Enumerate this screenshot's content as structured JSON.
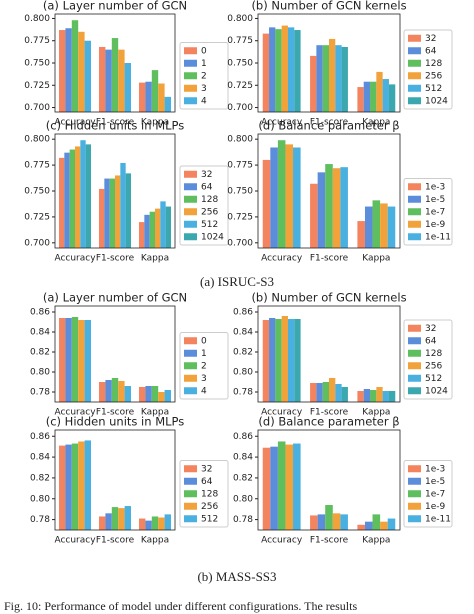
{
  "captions": [
    "(a) ISRUC-S3",
    "(b) MASS-SS3"
  ],
  "footer": "Fig. 10: Performance of model under different configurations. The results",
  "chart_data": [
    {
      "type": "bar",
      "title": "(a) Layer number of GCN",
      "categories": [
        "Accuracy",
        "F1-score",
        "Kappa"
      ],
      "ylim": [
        0.695,
        0.805
      ],
      "yticks": [
        {
          "value": 0.7,
          "label": "0.700"
        },
        0.725,
        {
          "value": 0.75,
          "label": "0.750"
        },
        0.775,
        {
          "value": 0.8,
          "label": "0.800"
        }
      ],
      "series": [
        {
          "name": "0",
          "color": "#f4845f",
          "values": [
            0.787,
            0.768,
            0.728
          ]
        },
        {
          "name": "1",
          "color": "#5b8ddb",
          "values": [
            0.789,
            0.765,
            0.729
          ]
        },
        {
          "name": "2",
          "color": "#5fbf5f",
          "values": [
            0.798,
            0.778,
            0.742
          ]
        },
        {
          "name": "3",
          "color": "#f2a23a",
          "values": [
            0.785,
            0.765,
            0.727
          ]
        },
        {
          "name": "4",
          "color": "#4ab0e0",
          "values": [
            0.775,
            0.75,
            0.712
          ]
        }
      ]
    },
    {
      "type": "bar",
      "title": "(b) Number of GCN kernels",
      "categories": [
        "Accuracy",
        "F1-score",
        "Kappa"
      ],
      "ylim": [
        0.695,
        0.805
      ],
      "yticks": [
        {
          "value": 0.7,
          "label": "0.700"
        },
        0.725,
        {
          "value": 0.75,
          "label": "0.750"
        },
        0.775,
        {
          "value": 0.8,
          "label": "0.800"
        }
      ],
      "series": [
        {
          "name": "32",
          "color": "#f4845f",
          "values": [
            0.783,
            0.758,
            0.723
          ]
        },
        {
          "name": "64",
          "color": "#5b8ddb",
          "values": [
            0.79,
            0.77,
            0.729
          ]
        },
        {
          "name": "128",
          "color": "#5fbf5f",
          "values": [
            0.788,
            0.77,
            0.729
          ]
        },
        {
          "name": "256",
          "color": "#f2a23a",
          "values": [
            0.792,
            0.777,
            0.74
          ]
        },
        {
          "name": "512",
          "color": "#4ab0e0",
          "values": [
            0.79,
            0.77,
            0.732
          ]
        },
        {
          "name": "1024",
          "color": "#3ba8b0",
          "values": [
            0.787,
            0.768,
            0.726
          ]
        }
      ]
    },
    {
      "type": "bar",
      "title": "(c) Hidden units in MLPs",
      "categories": [
        "Accuracy",
        "F1-score",
        "Kappa"
      ],
      "ylim": [
        0.695,
        0.805
      ],
      "yticks": [
        {
          "value": 0.7,
          "label": "0.700"
        },
        0.725,
        {
          "value": 0.75,
          "label": "0.750"
        },
        0.775,
        {
          "value": 0.8,
          "label": "0.800"
        }
      ],
      "series": [
        {
          "name": "32",
          "color": "#f4845f",
          "values": [
            0.782,
            0.752,
            0.72
          ]
        },
        {
          "name": "64",
          "color": "#5b8ddb",
          "values": [
            0.787,
            0.762,
            0.727
          ]
        },
        {
          "name": "128",
          "color": "#5fbf5f",
          "values": [
            0.79,
            0.762,
            0.73
          ]
        },
        {
          "name": "256",
          "color": "#f2a23a",
          "values": [
            0.793,
            0.765,
            0.733
          ]
        },
        {
          "name": "512",
          "color": "#4ab0e0",
          "values": [
            0.799,
            0.777,
            0.74
          ]
        },
        {
          "name": "1024",
          "color": "#3ba8b0",
          "values": [
            0.795,
            0.767,
            0.735
          ]
        }
      ]
    },
    {
      "type": "bar",
      "title": "(d) Balance parameter β",
      "categories": [
        "Accuracy",
        "F1-score",
        "Kappa"
      ],
      "ylim": [
        0.695,
        0.805
      ],
      "yticks": [
        {
          "value": 0.7,
          "label": "0.700"
        },
        0.725,
        {
          "value": 0.75,
          "label": "0.750"
        },
        0.775,
        {
          "value": 0.8,
          "label": "0.800"
        }
      ],
      "series": [
        {
          "name": "1e-3",
          "color": "#f4845f",
          "values": [
            0.78,
            0.757,
            0.721
          ]
        },
        {
          "name": "1e-5",
          "color": "#5b8ddb",
          "values": [
            0.792,
            0.768,
            0.735
          ]
        },
        {
          "name": "1e-7",
          "color": "#5fbf5f",
          "values": [
            0.799,
            0.776,
            0.741
          ]
        },
        {
          "name": "1e-9",
          "color": "#f2a23a",
          "values": [
            0.795,
            0.772,
            0.738
          ]
        },
        {
          "name": "1e-11",
          "color": "#4ab0e0",
          "values": [
            0.792,
            0.773,
            0.735
          ]
        }
      ]
    },
    {
      "type": "bar",
      "title": "(a) Layer number of GCN",
      "categories": [
        "Accuracy",
        "F1-score",
        "Kappa"
      ],
      "ylim": [
        0.77,
        0.866
      ],
      "yticks": [
        0.78,
        {
          "value": 0.8,
          "label": "0.80"
        },
        0.82,
        0.84,
        0.86
      ],
      "series": [
        {
          "name": "0",
          "color": "#f4845f",
          "values": [
            0.854,
            0.79,
            0.785
          ]
        },
        {
          "name": "1",
          "color": "#5b8ddb",
          "values": [
            0.854,
            0.792,
            0.786
          ]
        },
        {
          "name": "2",
          "color": "#5fbf5f",
          "values": [
            0.855,
            0.794,
            0.786
          ]
        },
        {
          "name": "3",
          "color": "#f2a23a",
          "values": [
            0.852,
            0.791,
            0.78
          ]
        },
        {
          "name": "4",
          "color": "#4ab0e0",
          "values": [
            0.852,
            0.786,
            0.782
          ]
        }
      ]
    },
    {
      "type": "bar",
      "title": "(b) Number of GCN kernels",
      "categories": [
        "Accuracy",
        "F1-score",
        "Kappa"
      ],
      "ylim": [
        0.77,
        0.866
      ],
      "yticks": [
        0.78,
        {
          "value": 0.8,
          "label": "0.80"
        },
        0.82,
        0.84,
        0.86
      ],
      "series": [
        {
          "name": "32",
          "color": "#f4845f",
          "values": [
            0.852,
            0.789,
            0.781
          ]
        },
        {
          "name": "64",
          "color": "#5b8ddb",
          "values": [
            0.854,
            0.789,
            0.783
          ]
        },
        {
          "name": "128",
          "color": "#5fbf5f",
          "values": [
            0.853,
            0.79,
            0.782
          ]
        },
        {
          "name": "256",
          "color": "#f2a23a",
          "values": [
            0.856,
            0.794,
            0.785
          ]
        },
        {
          "name": "512",
          "color": "#4ab0e0",
          "values": [
            0.853,
            0.788,
            0.781
          ]
        },
        {
          "name": "1024",
          "color": "#3ba8b0",
          "values": [
            0.853,
            0.785,
            0.781
          ]
        }
      ]
    },
    {
      "type": "bar",
      "title": "(c) Hidden units in MLPs",
      "categories": [
        "Accuracy",
        "F1-score",
        "Kappa"
      ],
      "ylim": [
        0.77,
        0.866
      ],
      "yticks": [
        0.78,
        {
          "value": 0.8,
          "label": "0.80"
        },
        0.82,
        0.84,
        0.86
      ],
      "series": [
        {
          "name": "32",
          "color": "#f4845f",
          "values": [
            0.851,
            0.783,
            0.781
          ]
        },
        {
          "name": "64",
          "color": "#5b8ddb",
          "values": [
            0.852,
            0.786,
            0.779
          ]
        },
        {
          "name": "128",
          "color": "#5fbf5f",
          "values": [
            0.853,
            0.792,
            0.783
          ]
        },
        {
          "name": "256",
          "color": "#f2a23a",
          "values": [
            0.855,
            0.791,
            0.782
          ]
        },
        {
          "name": "512",
          "color": "#4ab0e0",
          "values": [
            0.856,
            0.793,
            0.785
          ]
        }
      ]
    },
    {
      "type": "bar",
      "title": "(d) Balance parameter β",
      "categories": [
        "Accuracy",
        "F1-score",
        "Kappa"
      ],
      "ylim": [
        0.77,
        0.866
      ],
      "yticks": [
        0.78,
        {
          "value": 0.8,
          "label": "0.80"
        },
        0.82,
        0.84,
        0.86
      ],
      "series": [
        {
          "name": "1e-3",
          "color": "#f4845f",
          "values": [
            0.849,
            0.784,
            0.775
          ]
        },
        {
          "name": "1e-5",
          "color": "#5b8ddb",
          "values": [
            0.85,
            0.785,
            0.778
          ]
        },
        {
          "name": "1e-7",
          "color": "#5fbf5f",
          "values": [
            0.855,
            0.794,
            0.785
          ]
        },
        {
          "name": "1e-9",
          "color": "#f2a23a",
          "values": [
            0.852,
            0.786,
            0.778
          ]
        },
        {
          "name": "1e-11",
          "color": "#4ab0e0",
          "values": [
            0.853,
            0.785,
            0.781
          ]
        }
      ]
    }
  ]
}
